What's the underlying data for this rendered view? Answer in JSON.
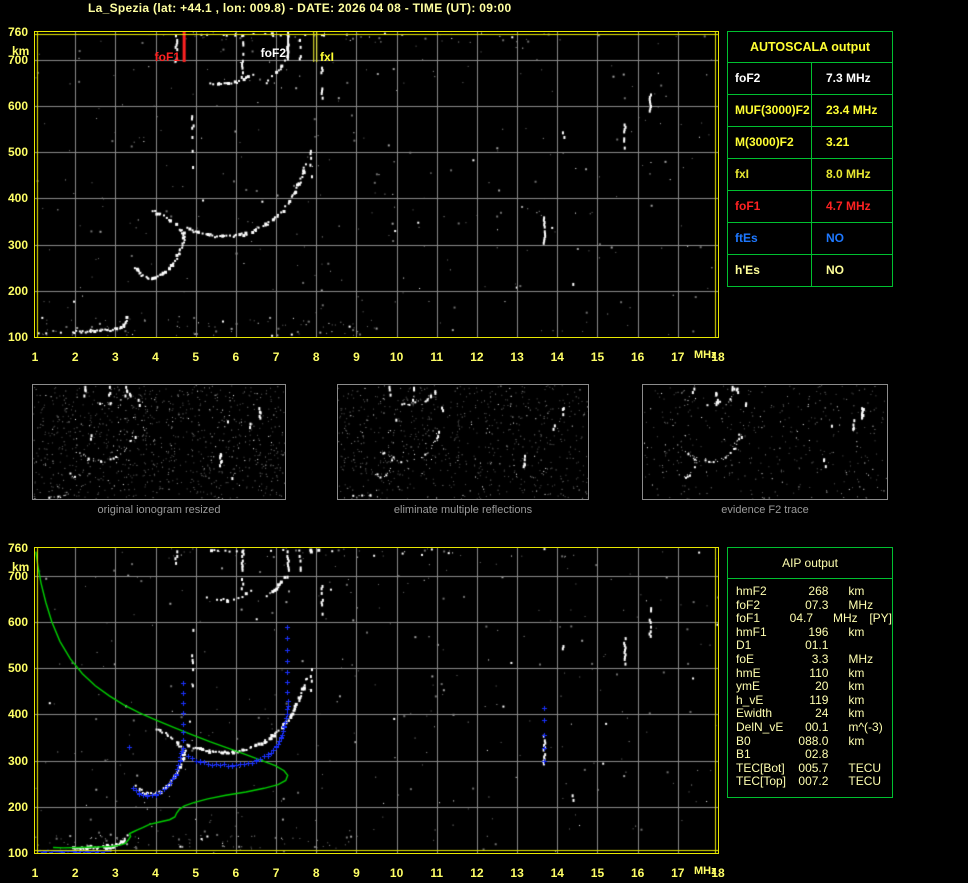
{
  "title": "La_Spezia (lat: +44.1 , lon: 009.8) - DATE: 2026 04 08 - TIME (UT): 09:00",
  "colors": {
    "background": "#000000",
    "plot_border": "#e8e800",
    "grid": "#8a8a8a",
    "tick_label": "#ffff66",
    "table_border": "#00c030",
    "trace_white": "#ffffff",
    "profile_green": "#00d000",
    "restored_blue": "#1a30ff",
    "caption_gray": "#9a9a9a",
    "title_yellow": "#ffffa0"
  },
  "autoscala": {
    "header": "AUTOSCALA output",
    "rows": [
      {
        "label": "foF2",
        "value": "7.3 MHz",
        "color": "#ffffff"
      },
      {
        "label": "MUF(3000)F2",
        "value": "23.4 MHz",
        "color": "#ffff33"
      },
      {
        "label": "M(3000)F2",
        "value": "3.21",
        "color": "#ffff33"
      },
      {
        "label": "fxI",
        "value": "8.0 MHz",
        "color": "#e8e832"
      },
      {
        "label": "foF1",
        "value": "4.7 MHz",
        "color": "#ff2222"
      },
      {
        "label": "ftEs",
        "value": "NO",
        "color": "#1e78ff"
      },
      {
        "label": "h'Es",
        "value": "NO",
        "color": "#ffff99"
      }
    ]
  },
  "aip": {
    "header": "AIP output",
    "rows": [
      {
        "label": "hmF2",
        "value": "268",
        "unit": "km",
        "extra": ""
      },
      {
        "label": "foF2",
        "value": "07.3",
        "unit": "MHz",
        "extra": ""
      },
      {
        "label": "foF1",
        "value": "04.7",
        "unit": "MHz",
        "extra": "[PY]"
      },
      {
        "label": "hmF1",
        "value": "196",
        "unit": "km",
        "extra": ""
      },
      {
        "label": "D1",
        "value": "01.1",
        "unit": "",
        "extra": ""
      },
      {
        "label": "foE",
        "value": "3.3",
        "unit": "MHz",
        "extra": ""
      },
      {
        "label": "hmE",
        "value": "110",
        "unit": "km",
        "extra": ""
      },
      {
        "label": "ymE",
        "value": "20",
        "unit": "km",
        "extra": ""
      },
      {
        "label": "h_vE",
        "value": "119",
        "unit": "km",
        "extra": ""
      },
      {
        "label": "Ewidth",
        "value": "24",
        "unit": "km",
        "extra": ""
      },
      {
        "label": "DelN_vE",
        "value": "00.1",
        "unit": "m^(-3)",
        "extra": ""
      },
      {
        "label": "B0",
        "value": "088.0",
        "unit": "km",
        "extra": ""
      },
      {
        "label": "B1",
        "value": "02.8",
        "unit": "",
        "extra": ""
      },
      {
        "label": "TEC[Bot]",
        "value": "005.7",
        "unit": "TECU",
        "extra": ""
      },
      {
        "label": "TEC[Top]",
        "value": "007.2",
        "unit": "TECU",
        "extra": ""
      }
    ]
  },
  "thumbnails": [
    {
      "caption": "original ionogram resized",
      "traces": [
        "e_main",
        "f1_arc",
        "f_upper",
        "f2_main",
        "echo_a",
        "echo_b"
      ],
      "noise": 950,
      "seed": 101
    },
    {
      "caption": "eliminate multiple reflections",
      "traces": [
        "e_main",
        "f1_arc",
        "f_upper",
        "f2_main",
        "echo_a",
        "echo_b"
      ],
      "noise": 760,
      "seed": 202
    },
    {
      "caption": "evidence F2 trace",
      "traces": [
        "f1_arc",
        "f_upper",
        "f2_main",
        "echo_a",
        "echo_b"
      ],
      "noise": 400,
      "seed": 303
    }
  ],
  "chart_data": {
    "type": "scatter",
    "title": "ionogram with AUTOSCALA interpretation",
    "axes": {
      "x": {
        "label": "MHz",
        "min": 1,
        "max": 18,
        "ticks": [
          1,
          2,
          3,
          4,
          5,
          6,
          7,
          8,
          9,
          10,
          11,
          12,
          13,
          14,
          15,
          16,
          17,
          18
        ]
      },
      "y": {
        "label": "km",
        "min": 100,
        "max": 760,
        "ticks": [
          760,
          700,
          600,
          500,
          400,
          300,
          200,
          100
        ]
      }
    },
    "markers": [
      {
        "label": "foF1",
        "freq": 4.7,
        "color": "#ff2222",
        "line": "solid",
        "len": 30
      },
      {
        "label": "foF2",
        "freq": 7.3,
        "color": "#ffffff",
        "line": "solid",
        "len": 26
      },
      {
        "label": "fxI",
        "freq": 8.0,
        "color": "#ffff33",
        "line": "double",
        "len": 30
      }
    ],
    "traces": {
      "e_sparse": {
        "plots": "top",
        "density": 0.35,
        "size": 2,
        "points": [
          [
            1.0,
            107
          ],
          [
            1.5,
            109
          ],
          [
            1.95,
            111
          ]
        ]
      },
      "e_main": {
        "plots": "both",
        "density": 0.9,
        "size": 2,
        "points": [
          [
            1.95,
            111
          ],
          [
            2.4,
            113
          ],
          [
            2.8,
            114
          ],
          [
            3.05,
            117
          ],
          [
            3.2,
            124
          ],
          [
            3.3,
            140
          ]
        ]
      },
      "e_bottom": {
        "plots": "bottom",
        "density": 0.85,
        "size": 2,
        "points": [
          [
            2.0,
            108
          ],
          [
            2.5,
            110
          ],
          [
            2.9,
            112
          ],
          [
            3.1,
            118
          ]
        ]
      },
      "f1_arc": {
        "plots": "both",
        "density": 0.85,
        "size": 2,
        "points": [
          [
            3.5,
            251
          ],
          [
            3.62,
            237
          ],
          [
            3.78,
            228
          ],
          [
            3.95,
            227
          ],
          [
            4.12,
            233
          ],
          [
            4.3,
            244
          ],
          [
            4.45,
            259
          ],
          [
            4.58,
            279
          ],
          [
            4.68,
            303
          ],
          [
            4.73,
            323
          ]
        ]
      },
      "f_upper": {
        "plots": "both",
        "density": 0.7,
        "size": 2,
        "points": [
          [
            3.95,
            372
          ],
          [
            4.12,
            365
          ],
          [
            4.32,
            355
          ],
          [
            4.52,
            342
          ],
          [
            4.64,
            329
          ],
          [
            4.7,
            317
          ]
        ]
      },
      "f2_main": {
        "plots": "both",
        "density": 0.85,
        "size": 2,
        "points": [
          [
            4.78,
            334
          ],
          [
            5.05,
            326
          ],
          [
            5.35,
            320
          ],
          [
            5.65,
            317
          ],
          [
            5.95,
            318
          ],
          [
            6.25,
            323
          ],
          [
            6.5,
            331
          ],
          [
            6.75,
            342
          ],
          [
            6.95,
            355
          ],
          [
            7.15,
            370
          ],
          [
            7.3,
            387
          ],
          [
            7.45,
            409
          ],
          [
            7.58,
            433
          ],
          [
            7.68,
            456
          ],
          [
            7.75,
            478
          ]
        ]
      },
      "echo_a": {
        "plots": "both",
        "density": 0.5,
        "size": 2,
        "points": [
          [
            5.3,
            651
          ],
          [
            5.55,
            647
          ],
          [
            5.8,
            647
          ],
          [
            6.05,
            652
          ],
          [
            6.25,
            660
          ],
          [
            6.42,
            668
          ]
        ]
      },
      "echo_b": {
        "plots": "both",
        "density": 0.5,
        "size": 2,
        "points": [
          [
            6.75,
            651
          ],
          [
            6.95,
            667
          ],
          [
            7.12,
            682
          ],
          [
            7.27,
            700
          ]
        ]
      },
      "top_fringe": {
        "plots": "both",
        "density": 0.22,
        "size": 2,
        "points": [
          [
            5.0,
            755
          ],
          [
            6.2,
            753
          ],
          [
            7.4,
            754
          ],
          [
            8.3,
            752
          ]
        ]
      }
    },
    "noise_streaks": [
      [
        4.52,
        700,
        757,
        0.6
      ],
      [
        6.17,
        655,
        757,
        0.55
      ],
      [
        7.3,
        700,
        757,
        0.7
      ],
      [
        7.6,
        705,
        745,
        0.4
      ],
      [
        8.14,
        620,
        688,
        0.55
      ],
      [
        4.93,
        430,
        600,
        0.2
      ],
      [
        7.87,
        445,
        505,
        0.25
      ],
      [
        13.68,
        296,
        366,
        0.75
      ],
      [
        14.16,
        530,
        560,
        0.4
      ],
      [
        14.4,
        212,
        240,
        0.35
      ],
      [
        15.68,
        512,
        576,
        0.7
      ],
      [
        16.32,
        572,
        634,
        0.7
      ]
    ],
    "profile_green": {
      "foF2_nose_mhz": 7.3,
      "hmF2_km": 268,
      "points": [
        [
          1.02,
          752
        ],
        [
          1.07,
          722
        ],
        [
          1.15,
          684
        ],
        [
          1.27,
          642
        ],
        [
          1.42,
          600
        ],
        [
          1.62,
          558
        ],
        [
          1.88,
          520
        ],
        [
          2.18,
          488
        ],
        [
          2.5,
          462
        ],
        [
          2.85,
          440
        ],
        [
          3.2,
          421
        ],
        [
          3.6,
          403
        ],
        [
          4.0,
          388
        ],
        [
          4.45,
          372
        ],
        [
          4.9,
          356
        ],
        [
          5.35,
          341
        ],
        [
          5.8,
          327
        ],
        [
          6.25,
          313
        ],
        [
          6.65,
          300
        ],
        [
          6.98,
          289
        ],
        [
          7.2,
          278
        ],
        [
          7.29,
          268
        ],
        [
          7.24,
          257
        ],
        [
          7.05,
          248
        ],
        [
          6.7,
          240
        ],
        [
          6.25,
          232
        ],
        [
          5.75,
          225
        ],
        [
          5.3,
          217
        ],
        [
          4.95,
          209
        ],
        [
          4.72,
          202
        ],
        [
          4.6,
          195
        ],
        [
          4.53,
          187
        ],
        [
          4.48,
          178
        ],
        [
          4.35,
          172
        ],
        [
          4.1,
          167
        ],
        [
          3.85,
          162
        ],
        [
          3.68,
          155
        ],
        [
          3.55,
          150
        ],
        [
          3.45,
          146
        ],
        [
          3.35,
          142
        ],
        [
          3.38,
          136
        ],
        [
          3.32,
          128
        ],
        [
          3.25,
          121
        ],
        [
          3.12,
          117
        ],
        [
          2.9,
          114
        ],
        [
          2.55,
          113
        ],
        [
          2.1,
          112
        ],
        [
          1.7,
          111
        ],
        [
          1.45,
          112
        ]
      ]
    },
    "restored_trace_blue": {
      "polylines": [
        [
          [
            3.45,
            241
          ],
          [
            3.6,
            230
          ],
          [
            3.8,
            225
          ],
          [
            4.0,
            227
          ],
          [
            4.2,
            237
          ],
          [
            4.35,
            251
          ],
          [
            4.5,
            271
          ],
          [
            4.6,
            299
          ],
          [
            4.68,
            329
          ]
        ],
        [
          [
            4.8,
            309
          ],
          [
            5.1,
            297
          ],
          [
            5.5,
            291
          ],
          [
            5.9,
            290
          ],
          [
            6.2,
            293
          ],
          [
            6.5,
            300
          ],
          [
            6.8,
            312
          ],
          [
            7.0,
            330
          ],
          [
            7.12,
            350
          ],
          [
            7.2,
            374
          ],
          [
            7.27,
            400
          ],
          [
            7.3,
            428
          ]
        ]
      ],
      "columns": [
        {
          "f": 4.68,
          "kms": [
            345,
            362,
            380,
            402,
            424,
            447,
            468
          ]
        },
        {
          "f": 7.27,
          "kms": [
            448,
            470,
            492,
            516,
            540,
            565,
            588
          ]
        },
        {
          "f": 13.68,
          "kms": [
            300,
            328,
            356,
            388,
            414
          ]
        }
      ],
      "stray_points": [
        [
          3.35,
          330
        ]
      ],
      "e_row": {
        "f1": 1.05,
        "f2": 2.85,
        "km": 105
      }
    },
    "noise": {
      "plot_dots": 330,
      "bottom_dots": 80,
      "top_dots": 40,
      "seed_top_plot": 11,
      "seed_bottom_plot": 57
    }
  }
}
